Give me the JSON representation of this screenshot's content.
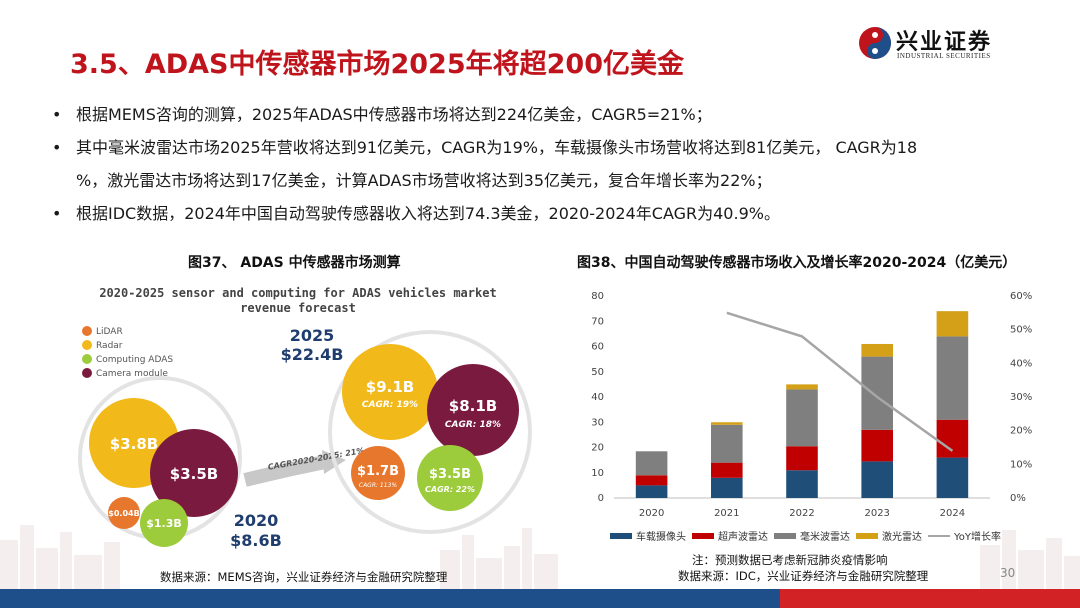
{
  "header": {
    "title": "3.5、ADAS中传感器市场2025年将超200亿美金",
    "logo_cn": "兴业证券",
    "logo_en": "INDUSTRIAL SECURITIES"
  },
  "bullets": [
    "根据MEMS咨询的测算，2025年ADAS中传感器市场将达到224亿美金，CAGR5=21%；",
    "其中毫米波雷达市场2025年营收将达到91亿美元，CAGR为19%，车载摄像头市场营收将达到81亿美元， CAGR为18",
    "%，激光雷达市场将达到17亿美金，计算ADAS市场营收将达到35亿美元，复合年增长率为22%；",
    "根据IDC数据，2024年中国自动驾驶传感器收入将达到74.3美金，2020-2024年CAGR为40.9%。"
  ],
  "fig37": {
    "title": "图37、 ADAS 中传感器市场测算",
    "inner_title_line1": "2020-2025 sensor and computing for ADAS vehicles market",
    "inner_title_line2": "revenue forecast",
    "legend": [
      "LiDAR",
      "Radar",
      "Computing ADAS",
      "Camera module"
    ],
    "colors": {
      "lidar": "#e8772e",
      "radar": "#f2b91a",
      "computing": "#9ccb3b",
      "camera": "#7a1a3f"
    },
    "y2020": "2020",
    "total2020": "$8.6B",
    "y2025": "2025",
    "total2025": "$22.4B",
    "c2020_radar": "$3.8B",
    "c2020_camera": "$3.5B",
    "c2020_lidar": "$0.04B",
    "c2020_computing": "$1.3B",
    "c2025_radar": "$9.1B",
    "c2025_radar_cagr": "CAGR: 19%",
    "c2025_camera": "$8.1B",
    "c2025_camera_cagr": "CAGR: 18%",
    "c2025_lidar": "$1.7B",
    "c2025_lidar_cagr": "CAGR: 113%",
    "c2025_computing": "$3.5B",
    "c2025_computing_cagr": "CAGR: 22%",
    "cagr_arrow": "CAGR2020-2025: 21%",
    "source": "数据来源：MEMS咨询，兴业证券经济与金融研究院整理"
  },
  "fig38": {
    "title": "图38、中国自动驾驶传感器市场收入及增长率2020-2024（亿美元）",
    "note": "注：预测数据已考虑新冠肺炎疫情影响",
    "source": "数据来源：IDC，兴业证券经济与金融研究院整理"
  },
  "page_number": "30",
  "chart_data": {
    "type": "bar",
    "stacked": true,
    "categories": [
      "2020",
      "2021",
      "2022",
      "2023",
      "2024"
    ],
    "series": [
      {
        "name": "车载摄像头",
        "color": "#1f4e79",
        "values": [
          5,
          8,
          11,
          14.5,
          16
        ]
      },
      {
        "name": "超声波雷达",
        "color": "#c00000",
        "values": [
          4,
          6,
          9.5,
          12.5,
          15
        ]
      },
      {
        "name": "毫米波雷达",
        "color": "#7f7f7f",
        "values": [
          9.5,
          15,
          22.5,
          29,
          33
        ]
      },
      {
        "name": "激光雷达",
        "color": "#d4a017",
        "values": [
          0,
          1,
          2,
          5,
          10
        ]
      }
    ],
    "line_series": {
      "name": "YoY增长率",
      "color": "#a6a6a6",
      "values": [
        null,
        0.55,
        0.48,
        0.3,
        0.14
      ]
    },
    "y_ticks": [
      "0",
      "10",
      "20",
      "30",
      "40",
      "50",
      "60",
      "70",
      "80"
    ],
    "y2_ticks": [
      "0%",
      "10%",
      "20%",
      "30%",
      "40%",
      "50%",
      "60%"
    ],
    "ylim": [
      0,
      80
    ],
    "y2lim": [
      0,
      0.6
    ],
    "grid": false,
    "legend_position": "bottom"
  }
}
